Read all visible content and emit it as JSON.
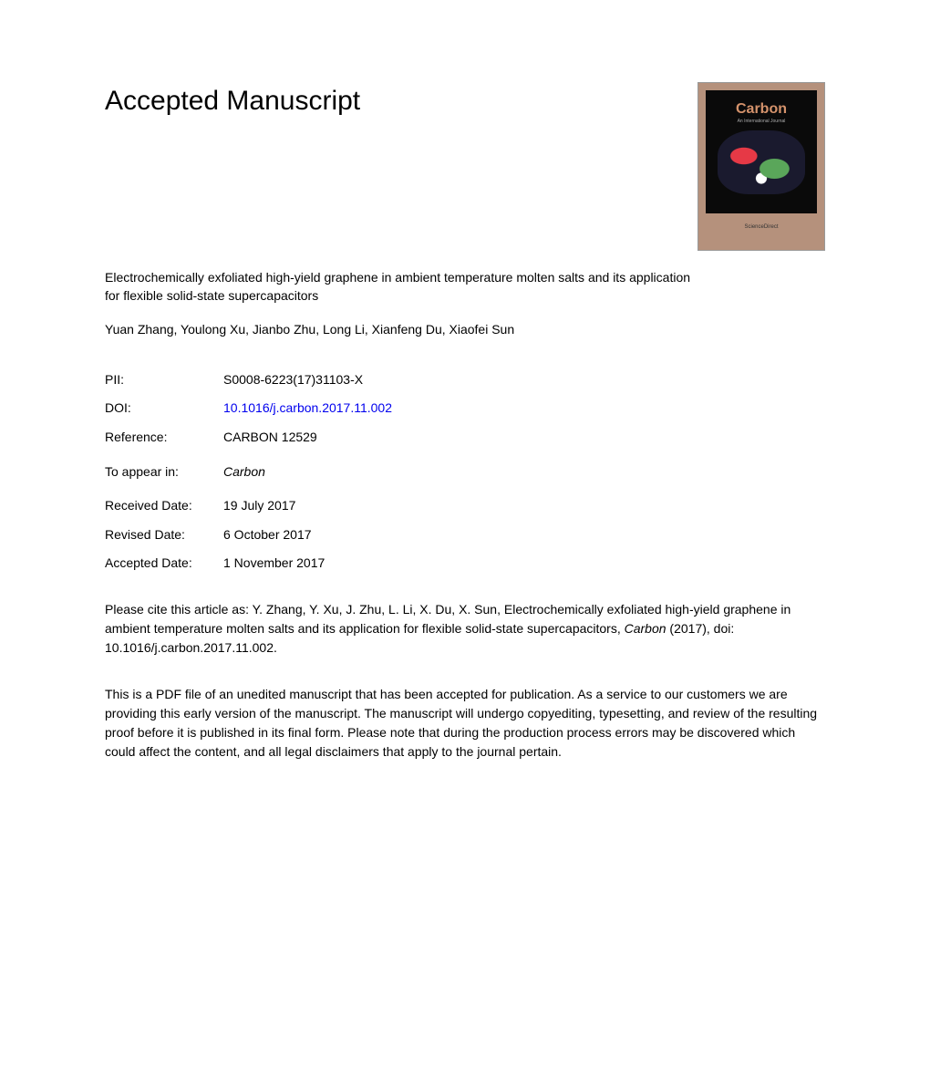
{
  "header": {
    "title": "Accepted Manuscript"
  },
  "cover": {
    "journal_name": "Carbon",
    "footer_text": "ScienceDirect"
  },
  "article": {
    "title": "Electrochemically exfoliated high-yield graphene in ambient temperature molten salts and its application for flexible solid-state supercapacitors",
    "authors": "Yuan Zhang, Youlong Xu, Jianbo Zhu, Long Li, Xianfeng Du, Xiaofei Sun"
  },
  "metadata": {
    "pii_label": "PII:",
    "pii_value": "S0008-6223(17)31103-X",
    "doi_label": "DOI:",
    "doi_value": "10.1016/j.carbon.2017.11.002",
    "reference_label": "Reference:",
    "reference_value": "CARBON 12529",
    "appear_label": "To appear in:",
    "appear_value": "Carbon",
    "received_label": "Received Date:",
    "received_value": "19 July 2017",
    "revised_label": "Revised Date:",
    "revised_value": "6 October 2017",
    "accepted_label": "Accepted Date:",
    "accepted_value": "1 November 2017"
  },
  "citation": {
    "prefix": "Please cite this article as: Y. Zhang, Y. Xu, J. Zhu, L. Li, X. Du, X. Sun, Electrochemically exfoliated high-yield graphene in ambient temperature molten salts and its application for flexible solid-state supercapacitors, ",
    "journal": "Carbon",
    "suffix": " (2017), doi: 10.1016/j.carbon.2017.11.002."
  },
  "disclaimer": "This is a PDF file of an unedited manuscript that has been accepted for publication. As a service to our customers we are providing this early version of the manuscript. The manuscript will undergo copyediting, typesetting, and review of the resulting proof before it is published in its final form. Please note that during the production process errors may be discovered which could affect the content, and all legal disclaimers that apply to the journal pertain."
}
